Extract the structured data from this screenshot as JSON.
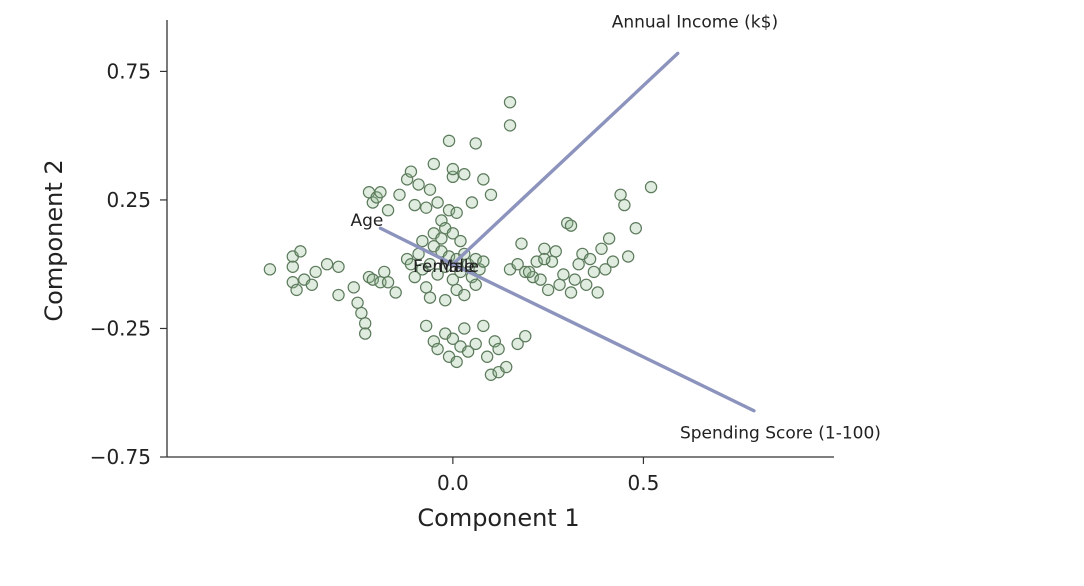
{
  "chart_data": {
    "type": "scatter",
    "title": "",
    "xlabel": "Component 1",
    "ylabel": "Component 2",
    "xlim": [
      -0.75,
      1.0
    ],
    "ylim": [
      -0.75,
      0.95
    ],
    "x_ticks": [
      0.0,
      0.5
    ],
    "x_tick_labels": [
      "0.0",
      "0.5"
    ],
    "y_ticks": [
      -0.75,
      -0.25,
      0.25,
      0.75
    ],
    "y_tick_labels": [
      "−0.75",
      "−0.25",
      "0.25",
      "0.75"
    ],
    "grid": false,
    "legend": "none",
    "point_color": "#8fbc8f",
    "vector_color": "#8c93bd",
    "points": [
      [
        -0.48,
        -0.02
      ],
      [
        -0.42,
        0.03
      ],
      [
        -0.42,
        -0.01
      ],
      [
        -0.4,
        0.05
      ],
      [
        -0.39,
        -0.06
      ],
      [
        -0.37,
        -0.08
      ],
      [
        -0.42,
        -0.07
      ],
      [
        -0.41,
        -0.1
      ],
      [
        -0.36,
        -0.03
      ],
      [
        -0.33,
        0.0
      ],
      [
        -0.3,
        -0.01
      ],
      [
        -0.3,
        -0.12
      ],
      [
        -0.26,
        -0.09
      ],
      [
        -0.25,
        -0.15
      ],
      [
        -0.24,
        -0.19
      ],
      [
        -0.23,
        -0.23
      ],
      [
        -0.23,
        -0.27
      ],
      [
        -0.22,
        -0.05
      ],
      [
        -0.21,
        -0.06
      ],
      [
        -0.19,
        -0.07
      ],
      [
        -0.18,
        -0.03
      ],
      [
        -0.17,
        -0.07
      ],
      [
        -0.15,
        -0.11
      ],
      [
        -0.22,
        0.28
      ],
      [
        -0.21,
        0.24
      ],
      [
        -0.2,
        0.26
      ],
      [
        -0.19,
        0.28
      ],
      [
        -0.17,
        0.21
      ],
      [
        -0.14,
        0.27
      ],
      [
        -0.12,
        0.33
      ],
      [
        -0.11,
        0.36
      ],
      [
        -0.1,
        0.23
      ],
      [
        -0.09,
        0.31
      ],
      [
        -0.07,
        0.22
      ],
      [
        -0.06,
        0.29
      ],
      [
        -0.05,
        0.39
      ],
      [
        -0.04,
        0.24
      ],
      [
        -0.03,
        0.17
      ],
      [
        -0.02,
        0.14
      ],
      [
        -0.01,
        0.21
      ],
      [
        0.0,
        0.34
      ],
      [
        0.0,
        0.37
      ],
      [
        0.01,
        0.2
      ],
      [
        0.02,
        0.09
      ],
      [
        0.03,
        0.35
      ],
      [
        0.05,
        0.24
      ],
      [
        0.06,
        0.47
      ],
      [
        0.08,
        0.33
      ],
      [
        0.1,
        0.27
      ],
      [
        -0.01,
        0.48
      ],
      [
        -0.12,
        0.02
      ],
      [
        -0.11,
        0.0
      ],
      [
        -0.1,
        -0.05
      ],
      [
        -0.09,
        0.04
      ],
      [
        -0.08,
        -0.02
      ],
      [
        -0.07,
        -0.09
      ],
      [
        -0.06,
        0.0
      ],
      [
        -0.05,
        0.07
      ],
      [
        -0.04,
        -0.04
      ],
      [
        -0.03,
        0.05
      ],
      [
        -0.02,
        -0.01
      ],
      [
        -0.01,
        0.03
      ],
      [
        0.0,
        -0.06
      ],
      [
        0.01,
        0.02
      ],
      [
        0.02,
        -0.03
      ],
      [
        0.03,
        0.04
      ],
      [
        0.04,
        0.0
      ],
      [
        0.05,
        -0.05
      ],
      [
        0.06,
        0.02
      ],
      [
        0.07,
        -0.02
      ],
      [
        0.08,
        0.01
      ],
      [
        -0.08,
        0.09
      ],
      [
        -0.05,
        0.12
      ],
      [
        -0.03,
        0.1
      ],
      [
        0.0,
        0.12
      ],
      [
        0.01,
        -0.1
      ],
      [
        0.03,
        -0.12
      ],
      [
        -0.02,
        -0.14
      ],
      [
        -0.06,
        -0.13
      ],
      [
        0.06,
        -0.08
      ],
      [
        -0.07,
        -0.24
      ],
      [
        -0.05,
        -0.3
      ],
      [
        -0.04,
        -0.33
      ],
      [
        -0.02,
        -0.27
      ],
      [
        -0.01,
        -0.36
      ],
      [
        0.0,
        -0.29
      ],
      [
        0.01,
        -0.38
      ],
      [
        0.02,
        -0.32
      ],
      [
        0.03,
        -0.25
      ],
      [
        0.04,
        -0.34
      ],
      [
        0.06,
        -0.31
      ],
      [
        0.08,
        -0.24
      ],
      [
        0.09,
        -0.36
      ],
      [
        0.1,
        -0.43
      ],
      [
        0.11,
        -0.3
      ],
      [
        0.12,
        -0.42
      ],
      [
        0.14,
        -0.4
      ],
      [
        0.17,
        -0.31
      ],
      [
        0.19,
        -0.28
      ],
      [
        0.12,
        -0.33
      ],
      [
        0.15,
        -0.02
      ],
      [
        0.17,
        0.0
      ],
      [
        0.18,
        0.08
      ],
      [
        0.19,
        -0.03
      ],
      [
        0.21,
        -0.05
      ],
      [
        0.22,
        0.01
      ],
      [
        0.23,
        -0.06
      ],
      [
        0.24,
        0.06
      ],
      [
        0.25,
        -0.1
      ],
      [
        0.26,
        0.01
      ],
      [
        0.27,
        0.05
      ],
      [
        0.28,
        -0.08
      ],
      [
        0.29,
        -0.04
      ],
      [
        0.3,
        0.16
      ],
      [
        0.31,
        -0.11
      ],
      [
        0.32,
        -0.06
      ],
      [
        0.33,
        0.0
      ],
      [
        0.34,
        0.04
      ],
      [
        0.35,
        -0.08
      ],
      [
        0.36,
        0.02
      ],
      [
        0.37,
        -0.03
      ],
      [
        0.38,
        -0.11
      ],
      [
        0.39,
        0.06
      ],
      [
        0.4,
        -0.02
      ],
      [
        0.41,
        0.1
      ],
      [
        0.42,
        0.01
      ],
      [
        0.44,
        0.27
      ],
      [
        0.46,
        0.03
      ],
      [
        0.48,
        0.14
      ],
      [
        0.52,
        0.3
      ],
      [
        0.45,
        0.23
      ],
      [
        0.31,
        0.15
      ],
      [
        0.24,
        0.02
      ],
      [
        0.2,
        -0.03
      ],
      [
        0.15,
        0.54
      ],
      [
        0.15,
        0.63
      ]
    ],
    "vectors": [
      {
        "label": "Annual Income (k$)",
        "x": 0.59,
        "y": 0.82
      },
      {
        "label": "Spending Score (1-100)",
        "x": 0.79,
        "y": -0.57
      },
      {
        "label": "Age",
        "x": -0.19,
        "y": 0.14
      },
      {
        "label": "Female",
        "x": -0.01,
        "y": 0.0
      },
      {
        "label": "Male",
        "x": 0.01,
        "y": 0.0
      }
    ]
  }
}
